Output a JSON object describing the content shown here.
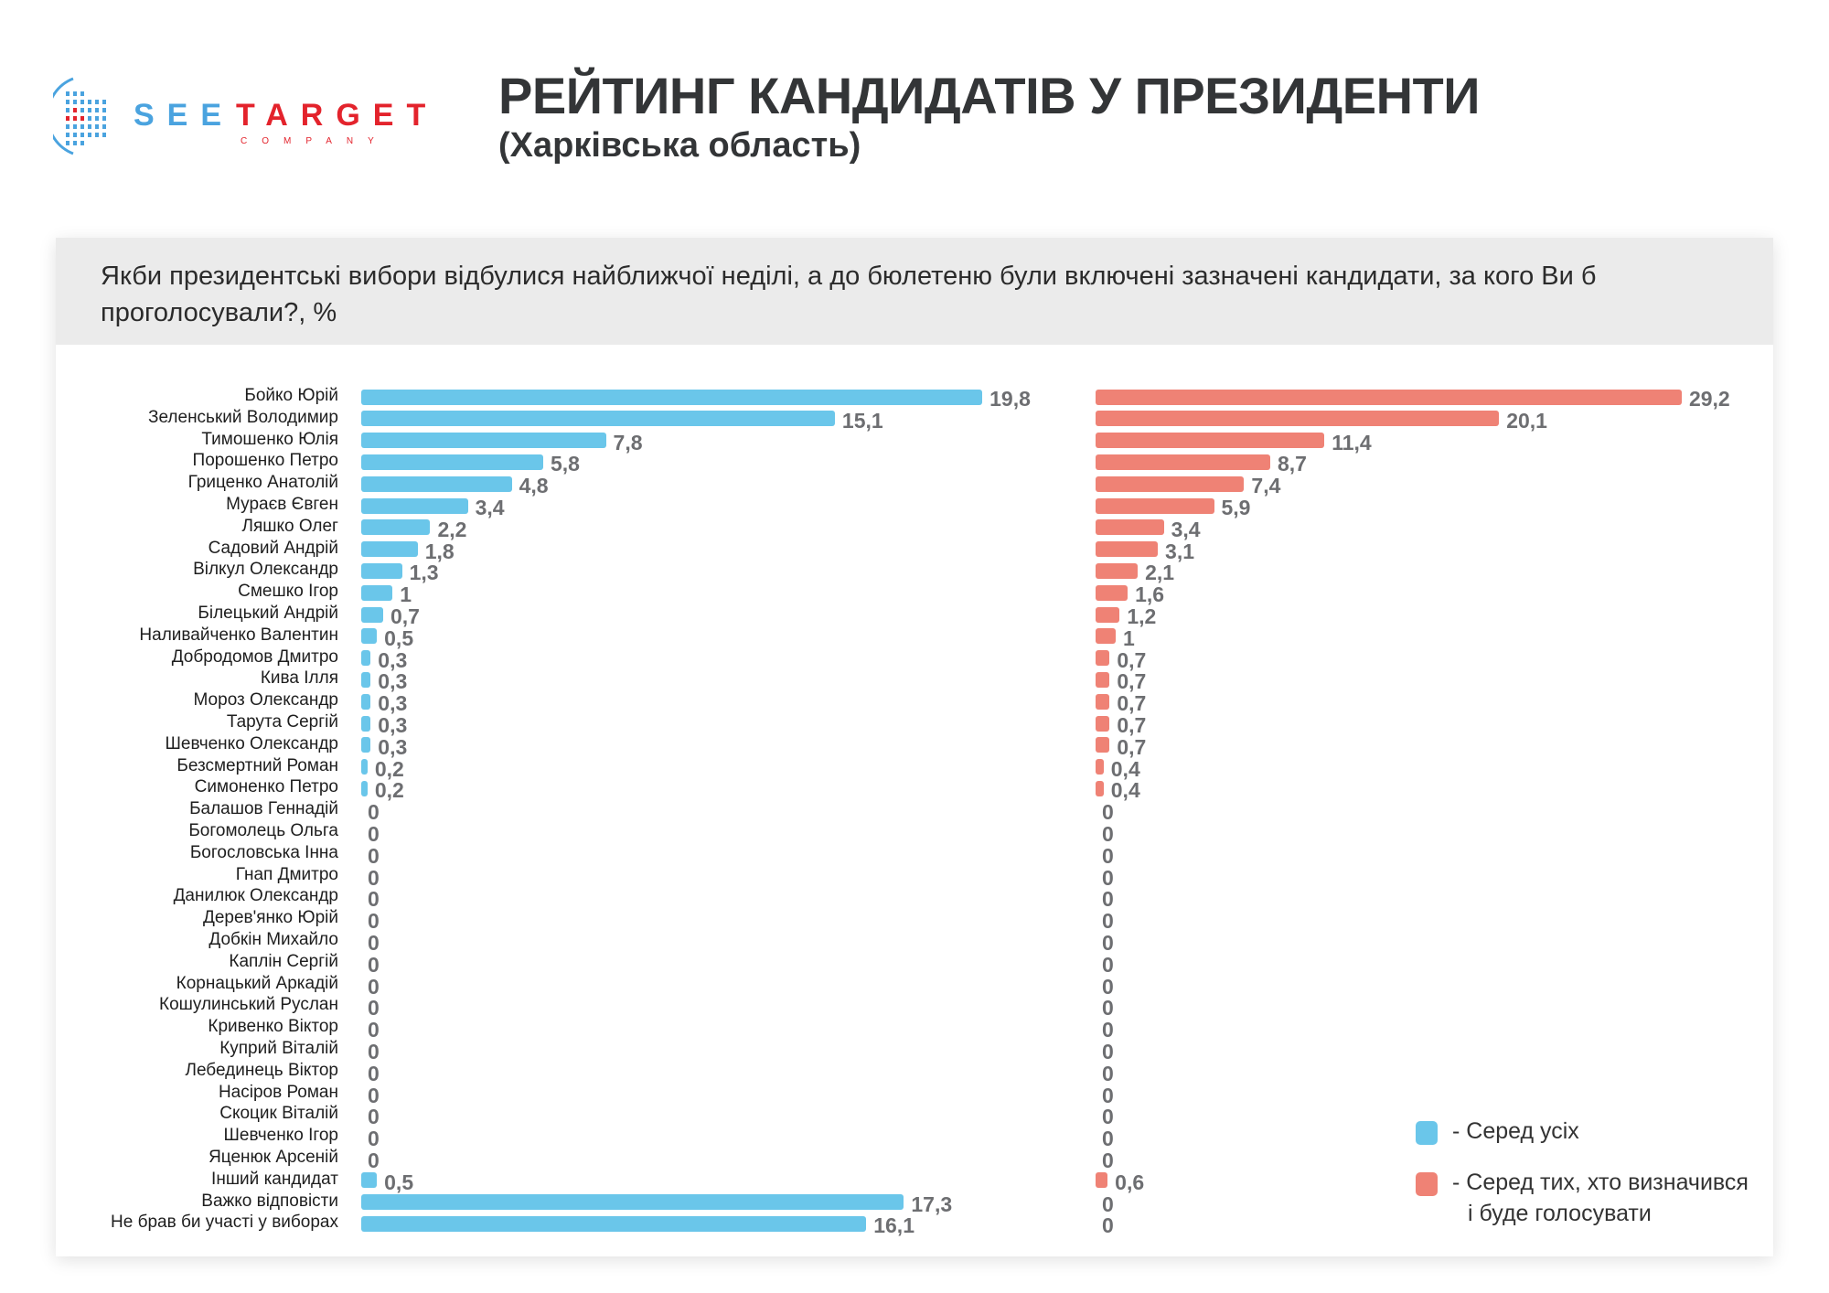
{
  "logo": {
    "brand_part1": "SEE",
    "brand_part2": "TARGET",
    "brand_sub": "COMPANY"
  },
  "header": {
    "title": "РЕЙТИНГ КАНДИДАТІВ У ПРЕЗИДЕНТИ",
    "subtitle": "(Харківська область)"
  },
  "colors": {
    "all": "#6ac6ea",
    "decided": "#ef8275",
    "value_text": "#6d6e71"
  },
  "chart_data": {
    "type": "bar",
    "orientation": "horizontal",
    "title": "Якби президентські вибори відбулися найближчої неділі, а до бюлетеню були включені зазначені кандидати, за кого Ви б проголосували?, %",
    "categories": [
      "Бойко Юрій",
      "Зеленський Володимир",
      "Тимошенко Юлія",
      "Порошенко Петро",
      "Гриценко Анатолій",
      "Мураєв Євген",
      "Ляшко Олег",
      "Садовий Андрій",
      "Вілкул Олександр",
      "Смешко Ігор",
      "Білецький Андрій",
      "Наливайченко Валентин",
      "Добродомов Дмитро",
      "Кива Ілля",
      "Мороз Олександр",
      "Тарута Сергій",
      "Шевченко Олександр",
      "Безсмертний Роман",
      "Симоненко Петро",
      "Балашов Геннадій",
      "Богомолець Ольга",
      "Богословська Інна",
      "Гнап Дмитро",
      "Данилюк Олександр",
      "Дерев'янко Юрій",
      "Добкін Михайло",
      "Каплін Сергій",
      "Корнацький Аркадій",
      "Кошулинський Руслан",
      "Кривенко Віктор",
      "Куприй Віталій",
      "Лебединець Віктор",
      "Насіров Роман",
      "Скоцик Віталій",
      "Шевченко Ігор",
      "Яценюк Арсеній",
      "Інший кандидат",
      "Важко відповісти",
      "Не брав би участі у виборах"
    ],
    "series": [
      {
        "name": "- Серед усіх",
        "labels": [
          "19,8",
          "15,1",
          "7,8",
          "5,8",
          "4,8",
          "3,4",
          "2,2",
          "1,8",
          "1,3",
          "1",
          "0,7",
          "0,5",
          "0,3",
          "0,3",
          "0,3",
          "0,3",
          "0,3",
          "0,2",
          "0,2",
          "0",
          "0",
          "0",
          "0",
          "0",
          "0",
          "0",
          "0",
          "0",
          "0",
          "0",
          "0",
          "0",
          "0",
          "0",
          "0",
          "0",
          "0,5",
          "17,3",
          "16,1"
        ],
        "values": [
          19.8,
          15.1,
          7.8,
          5.8,
          4.8,
          3.4,
          2.2,
          1.8,
          1.3,
          1,
          0.7,
          0.5,
          0.3,
          0.3,
          0.3,
          0.3,
          0.3,
          0.2,
          0.2,
          0,
          0,
          0,
          0,
          0,
          0,
          0,
          0,
          0,
          0,
          0,
          0,
          0,
          0,
          0,
          0,
          0,
          0.5,
          17.3,
          16.1
        ]
      },
      {
        "name": "- Серед тих, хто визначився",
        "name_line2": "і буде голосувати",
        "labels": [
          "29,2",
          "20,1",
          "11,4",
          "8,7",
          "7,4",
          "5,9",
          "3,4",
          "3,1",
          "2,1",
          "1,6",
          "1,2",
          "1",
          "0,7",
          "0,7",
          "0,7",
          "0,7",
          "0,7",
          "0,4",
          "0,4",
          "0",
          "0",
          "0",
          "0",
          "0",
          "0",
          "0",
          "0",
          "0",
          "0",
          "0",
          "0",
          "0",
          "0",
          "0",
          "0",
          "0",
          "0,6",
          "0",
          "0"
        ],
        "values": [
          29.2,
          20.1,
          11.4,
          8.7,
          7.4,
          5.9,
          3.4,
          3.1,
          2.1,
          1.6,
          1.2,
          1,
          0.7,
          0.7,
          0.7,
          0.7,
          0.7,
          0.4,
          0.4,
          0,
          0,
          0,
          0,
          0,
          0,
          0,
          0,
          0,
          0,
          0,
          0,
          0,
          0,
          0,
          0,
          0,
          0.6,
          0,
          0
        ]
      }
    ],
    "xlabel": "",
    "ylabel": "",
    "grid": false,
    "legend_position": "bottom-right"
  }
}
